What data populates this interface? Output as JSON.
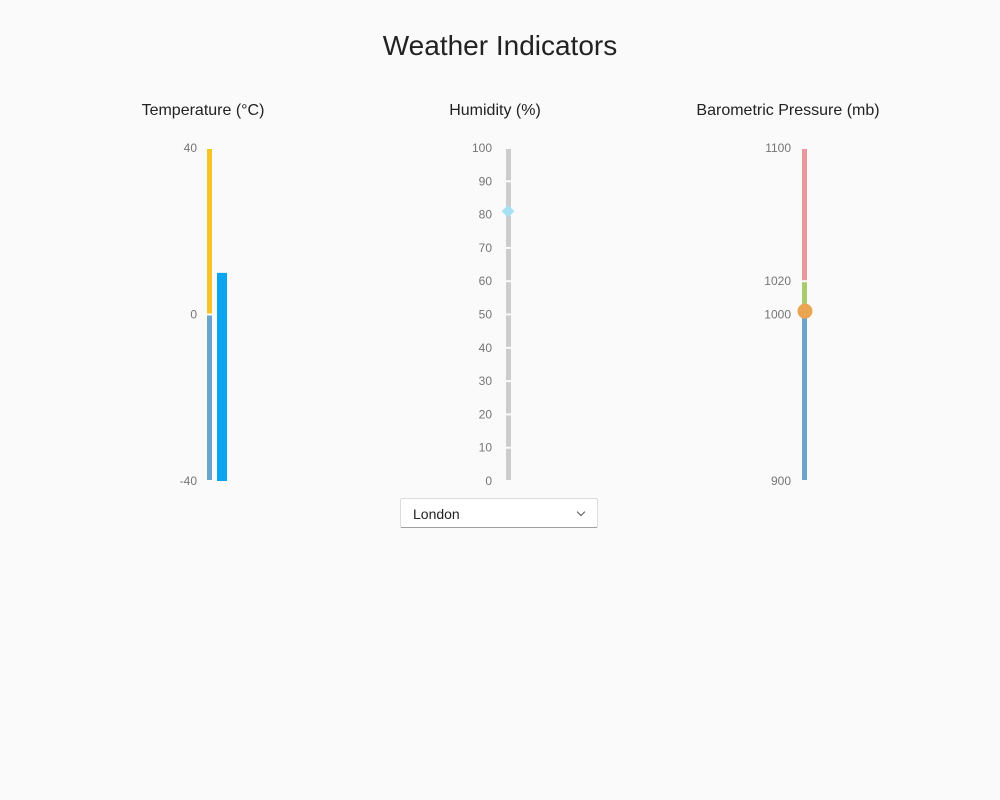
{
  "page_title": "Weather Indicators",
  "city_select": {
    "value": "London"
  },
  "chart_data": [
    {
      "type": "bullet",
      "title": "Temperature (°C)",
      "axis": {
        "min": -40,
        "max": 40,
        "ticks": [
          -40,
          0,
          40
        ]
      },
      "ranges": [
        {
          "from": -40,
          "to": 0,
          "color": "#6aa3cb"
        },
        {
          "from": 0,
          "to": 40,
          "color": "#f7c42a"
        }
      ],
      "value": 10,
      "value_color": "#0ba4ee"
    },
    {
      "type": "slider",
      "title": "Humidity (%)",
      "axis": {
        "min": 0,
        "max": 100,
        "ticks": [
          0,
          10,
          20,
          30,
          40,
          50,
          60,
          70,
          80,
          90,
          100
        ]
      },
      "track_color": "#cccccc",
      "value": 81,
      "marker_shape": "diamond",
      "marker_color": "#a7e0f2"
    },
    {
      "type": "gauge",
      "title": "Barometric Pressure (mb)",
      "axis": {
        "min": 900,
        "max": 1100,
        "ticks": [
          900,
          1000,
          1020,
          1100
        ]
      },
      "ranges": [
        {
          "from": 900,
          "to": 1000,
          "color": "#6aa3cb"
        },
        {
          "from": 1000,
          "to": 1020,
          "color": "#a8cc6c"
        },
        {
          "from": 1020,
          "to": 1100,
          "color": "#e9979b"
        }
      ],
      "value": 1002,
      "marker_shape": "circle",
      "marker_color": "#e9a551"
    }
  ]
}
